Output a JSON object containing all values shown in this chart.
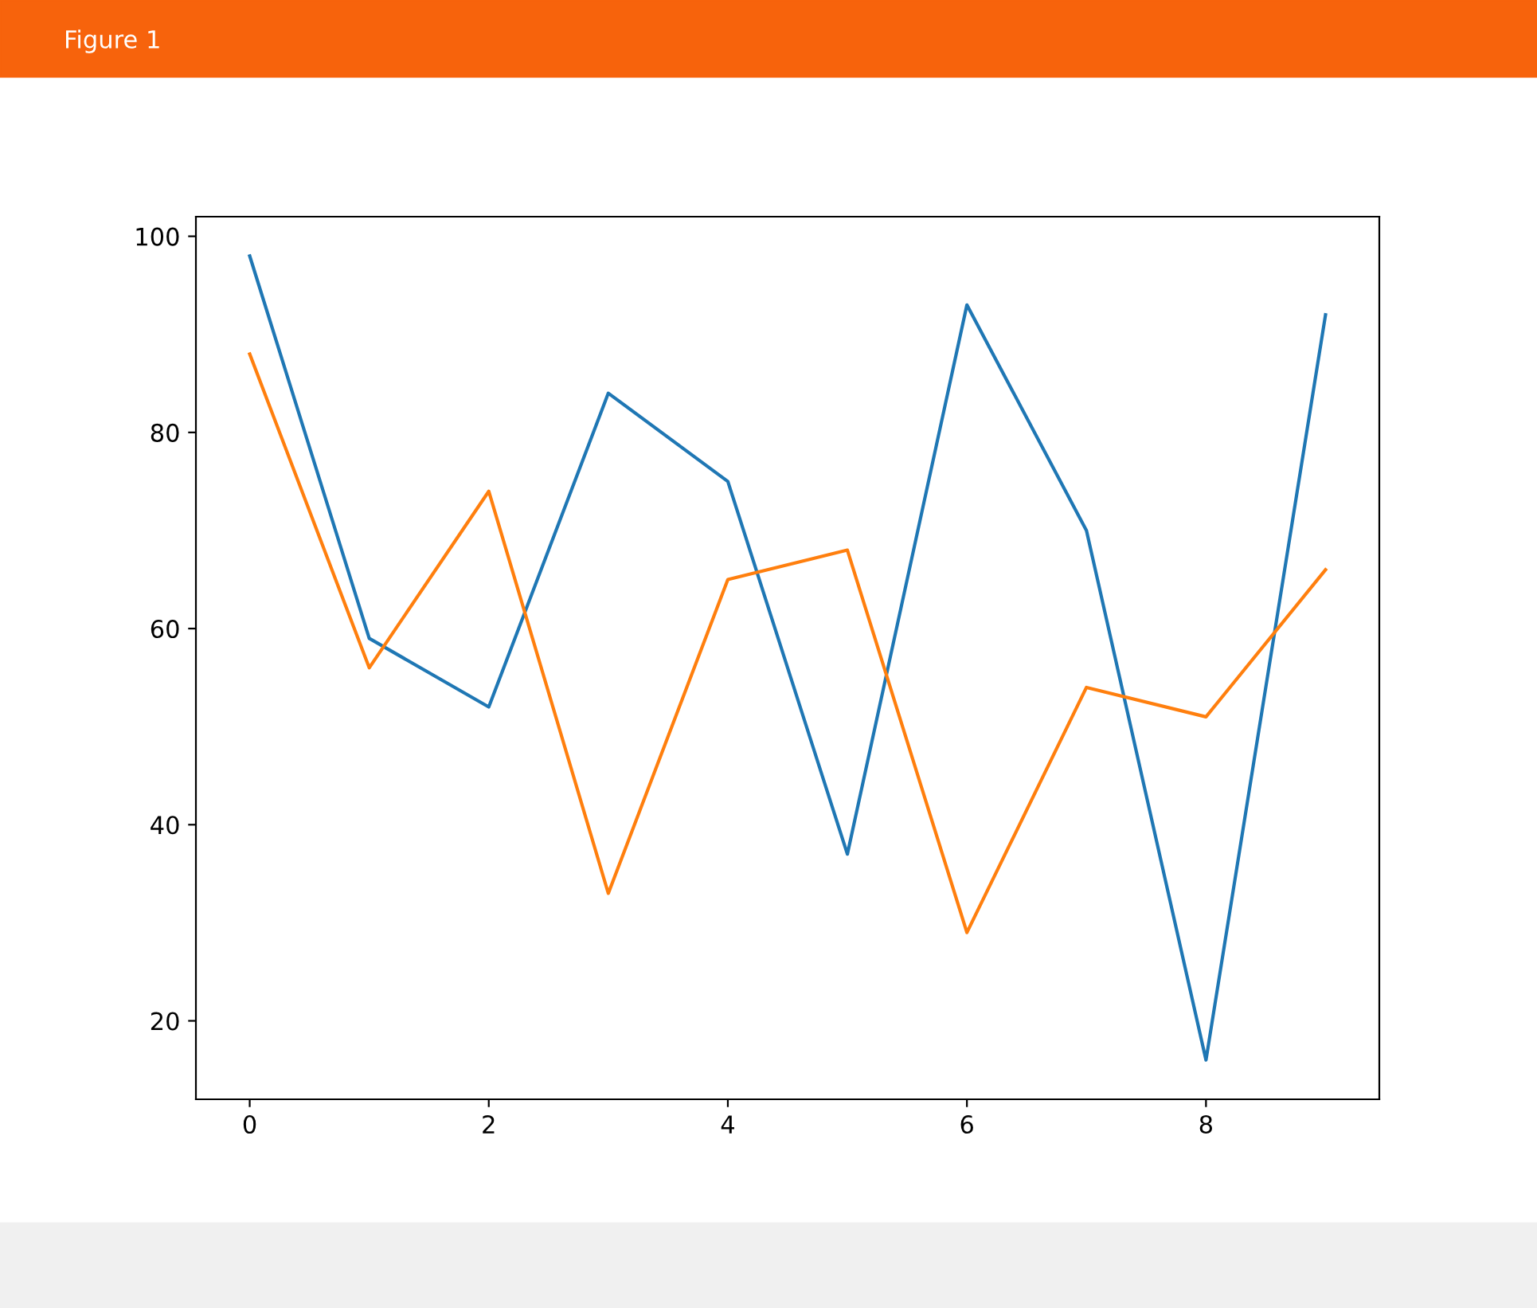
{
  "chart_data": {
    "type": "line",
    "title": "Figure 1",
    "x": [
      0,
      1,
      2,
      3,
      4,
      5,
      6,
      7,
      8,
      9
    ],
    "series": [
      {
        "color": "#1f77b4",
        "values": [
          98,
          59,
          52,
          84,
          75,
          37,
          93,
          70,
          16,
          92
        ]
      },
      {
        "color": "#ff7f0e",
        "values": [
          88,
          56,
          74,
          33,
          65,
          68,
          29,
          54,
          51,
          66
        ]
      }
    ],
    "xlim": [
      -0.45,
      9.45
    ],
    "ylim": [
      12,
      102
    ],
    "xticks": [
      0,
      2,
      4,
      6,
      8
    ],
    "yticks": [
      20,
      40,
      60,
      80,
      100
    ]
  }
}
